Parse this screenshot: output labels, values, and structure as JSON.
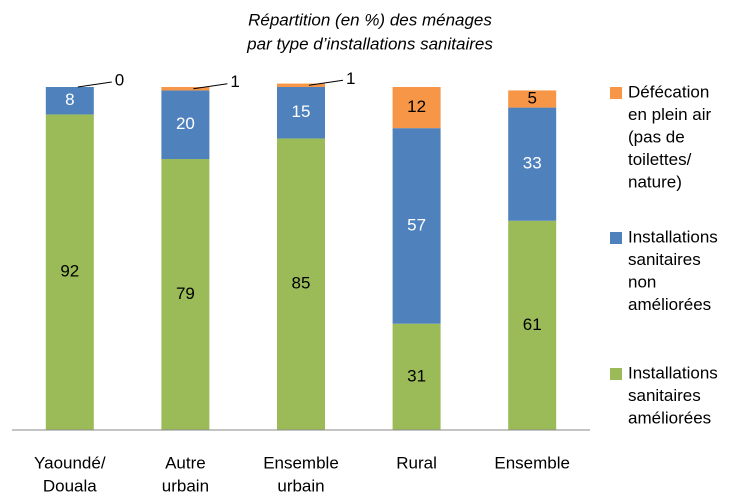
{
  "chart_data": {
    "type": "stacked-bar",
    "title": [
      "Répartition (en %) des ménages",
      "par type d’installations sanitaires"
    ],
    "categories": [
      [
        "Yaoundé/",
        "Douala"
      ],
      [
        "Autre",
        "urbain"
      ],
      [
        "Ensemble",
        "urbain"
      ],
      [
        "Rural"
      ],
      [
        "Ensemble"
      ]
    ],
    "series": [
      {
        "name": [
          "Installations",
          "sanitaires",
          "améliorées"
        ],
        "color": "#9bbb59",
        "values": [
          92,
          79,
          85,
          31,
          61
        ]
      },
      {
        "name": [
          "Installations",
          "sanitaires",
          "non",
          "améliorées"
        ],
        "color": "#4f81bd",
        "values": [
          8,
          20,
          15,
          57,
          33
        ]
      },
      {
        "name": [
          "Défécation",
          "en plein air",
          "(pas de",
          "toilettes/",
          "nature)"
        ],
        "color": "#f79646",
        "values": [
          0,
          1,
          1,
          12,
          5
        ]
      }
    ],
    "ylim": [
      0,
      100
    ]
  }
}
